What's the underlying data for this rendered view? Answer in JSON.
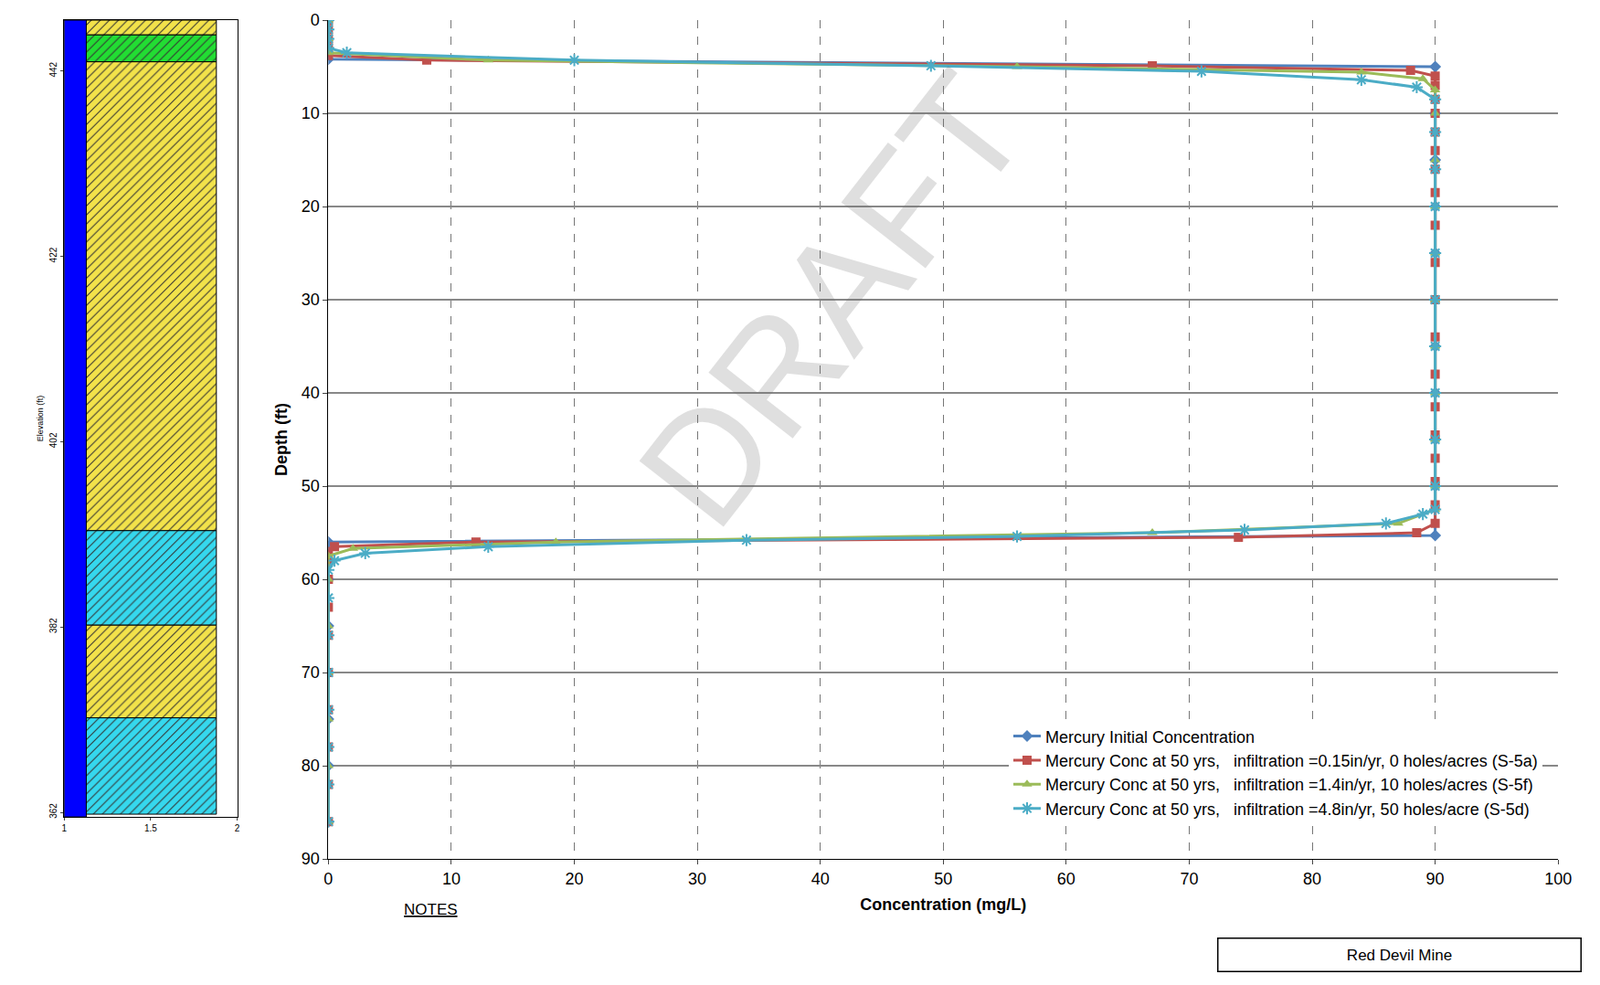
{
  "chart_data": [
    {
      "type": "column",
      "ylabel": "Elevation (ft)",
      "xlim": [
        1,
        2
      ],
      "xticks": [
        1,
        1.5,
        2
      ],
      "ylim": [
        361.5,
        447.5
      ],
      "yticks": [
        362,
        382,
        402,
        422,
        442
      ],
      "strip": {
        "x": [
          1,
          1.128
        ],
        "color": "#0000ff"
      },
      "layers": {
        "x": [
          1.128,
          1.88
        ],
        "tops": [
          447.5,
          445.9,
          443.0,
          392.4,
          382.2,
          372.2
        ],
        "bottoms": [
          445.9,
          443.0,
          392.4,
          382.2,
          372.2,
          361.8
        ],
        "colors": [
          "#f2e24a",
          "#22dd33",
          "#f2e24a",
          "#35d8ee",
          "#f2e24a",
          "#35d8ee"
        ]
      }
    },
    {
      "type": "line",
      "xlabel": "Concentration (mg/L)",
      "ylabel": "Depth (ft)",
      "xlim": [
        0,
        100
      ],
      "xticks": [
        0,
        10,
        20,
        30,
        40,
        50,
        60,
        70,
        80,
        90,
        100
      ],
      "ylim": [
        90,
        0
      ],
      "yticks": [
        0,
        10,
        20,
        30,
        40,
        50,
        60,
        70,
        80,
        90
      ],
      "grid": true,
      "legend": "lower right",
      "series": [
        {
          "name": "Mercury Initial Concentration",
          "color": "#4f81bd",
          "marker": "diamond",
          "depth": [
            0,
            4.2,
            5,
            10,
            15,
            20,
            25,
            30,
            35,
            40,
            45,
            50,
            55.3,
            56,
            60,
            65,
            70,
            75,
            80,
            86
          ],
          "values": [
            0,
            0,
            90,
            90,
            90,
            90,
            90,
            90,
            90,
            90,
            90,
            90,
            90,
            0,
            0,
            0,
            0,
            0,
            0,
            0
          ]
        },
        {
          "name": "Mercury Conc at 50 yrs,   infiltration =0.15in/yr, 0 holes/acres (S-5a)",
          "color": "#c0504d",
          "marker": "square",
          "depth": [
            0,
            1,
            2,
            3,
            3.8,
            4.3,
            4.9,
            5.4,
            6,
            7,
            8.5,
            10,
            12,
            14,
            16,
            18.5,
            22,
            26,
            30,
            34,
            38,
            41.5,
            44.5,
            47,
            49.5,
            52,
            54,
            55,
            55.5,
            56,
            56.5,
            57,
            58,
            60,
            63,
            66,
            70,
            74,
            78,
            82,
            86
          ],
          "values": [
            0,
            0,
            0,
            0,
            0,
            8,
            67,
            88,
            90,
            90,
            90,
            90,
            90,
            90,
            90,
            90,
            90,
            90,
            90,
            90,
            90,
            90,
            90,
            90,
            90,
            90,
            90,
            88.5,
            74,
            12,
            0.5,
            0,
            0,
            0,
            0,
            0,
            0,
            0,
            0,
            0,
            0
          ]
        },
        {
          "name": "Mercury Conc at 50 yrs,   infiltration =1.4in/yr, 10 holes/acres (S-5f)",
          "color": "#9bbb59",
          "marker": "triangle-up",
          "depth": [
            0,
            2,
            3.5,
            4.3,
            5,
            5.6,
            6.3,
            7.5,
            10,
            15,
            20,
            25,
            30,
            35,
            40,
            45,
            50,
            52.5,
            54,
            55,
            56,
            56.7,
            57.5,
            60,
            65,
            70,
            75,
            80,
            86
          ],
          "values": [
            0,
            0,
            0,
            13,
            56,
            84,
            89,
            90,
            90,
            90,
            90,
            90,
            90,
            90,
            90,
            90,
            90,
            90,
            87,
            67,
            18.5,
            2,
            0,
            0,
            0,
            0,
            0,
            0,
            0
          ]
        },
        {
          "name": "Mercury Conc at 50 yrs,   infiltration =4.8in/yr, 50 holes/acre (S-5d)",
          "color": "#4bacc6",
          "marker": "asterisk-open",
          "depth": [
            0,
            1,
            2,
            3,
            3.5,
            4.3,
            4.9,
            5.5,
            6.4,
            7.2,
            8.5,
            12,
            16,
            20,
            25,
            30,
            35,
            40,
            45,
            50,
            52.5,
            53,
            54,
            54.7,
            55.4,
            55.8,
            56.5,
            57.2,
            58,
            59,
            62,
            66,
            70,
            74,
            78,
            82,
            86
          ],
          "values": [
            0,
            0,
            0,
            0,
            1.5,
            20,
            49,
            71,
            84,
            88.5,
            90,
            90,
            90,
            90,
            90,
            90,
            90,
            90,
            90,
            90,
            90,
            89,
            86,
            74.5,
            56,
            34,
            13,
            3,
            0.5,
            0,
            0,
            0,
            0,
            0,
            0,
            0,
            0
          ]
        }
      ]
    }
  ],
  "watermark": "DRAFT",
  "notes_heading": "NOTES",
  "box_text": "Red Devil Mine"
}
